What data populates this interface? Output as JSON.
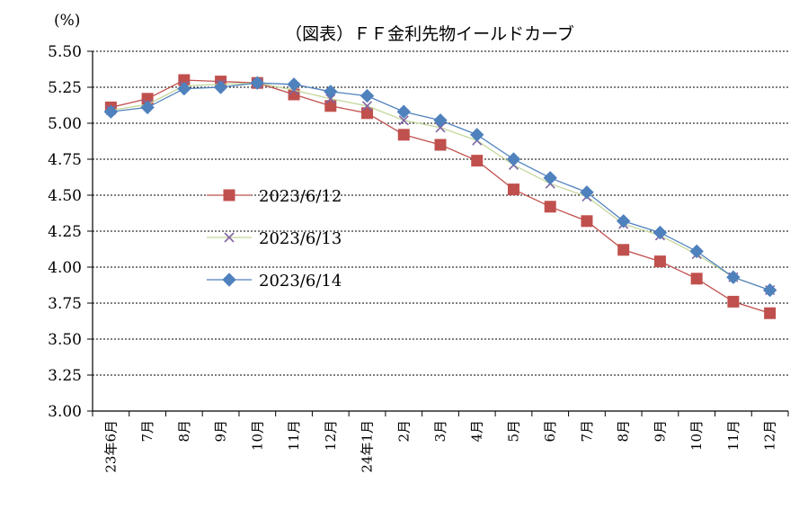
{
  "chart_data": {
    "type": "line",
    "title": "（図表）ＦＦ金利先物イールドカーブ",
    "unit_label": "(%)",
    "ylim": [
      3.0,
      5.5
    ],
    "y_ticks": [
      "5.50",
      "5.25",
      "5.00",
      "4.75",
      "4.50",
      "4.25",
      "4.00",
      "3.75",
      "3.50",
      "3.25",
      "3.00"
    ],
    "grid": "dashed horizontal",
    "categories": [
      "23年6月",
      "7月",
      "8月",
      "9月",
      "10月",
      "11月",
      "12月",
      "24年1月",
      "2月",
      "3月",
      "4月",
      "5月",
      "6月",
      "7月",
      "8月",
      "9月",
      "10月",
      "11月",
      "12月"
    ],
    "series": [
      {
        "name": "2023/6/12",
        "color": "#c0504d",
        "marker": "square",
        "values": [
          5.11,
          5.17,
          5.3,
          5.29,
          5.28,
          5.2,
          5.12,
          5.07,
          4.92,
          4.85,
          4.74,
          4.54,
          4.42,
          4.32,
          4.12,
          4.04,
          3.92,
          3.76,
          3.68
        ]
      },
      {
        "name": "2023/6/13",
        "color": "#8064a2",
        "line_color": "#c4d79b",
        "marker": "x",
        "values": [
          5.09,
          5.13,
          5.26,
          5.27,
          5.28,
          5.23,
          5.17,
          5.12,
          5.02,
          4.97,
          4.88,
          4.71,
          4.58,
          4.49,
          4.3,
          4.22,
          4.09,
          3.93,
          3.84
        ]
      },
      {
        "name": "2023/6/14",
        "color": "#4f81bd",
        "marker": "diamond",
        "values": [
          5.08,
          5.11,
          5.24,
          5.25,
          5.28,
          5.27,
          5.22,
          5.19,
          5.08,
          5.02,
          4.92,
          4.75,
          4.62,
          4.52,
          4.32,
          4.24,
          4.11,
          3.93,
          3.84
        ]
      }
    ],
    "legend_position": "center-left"
  }
}
